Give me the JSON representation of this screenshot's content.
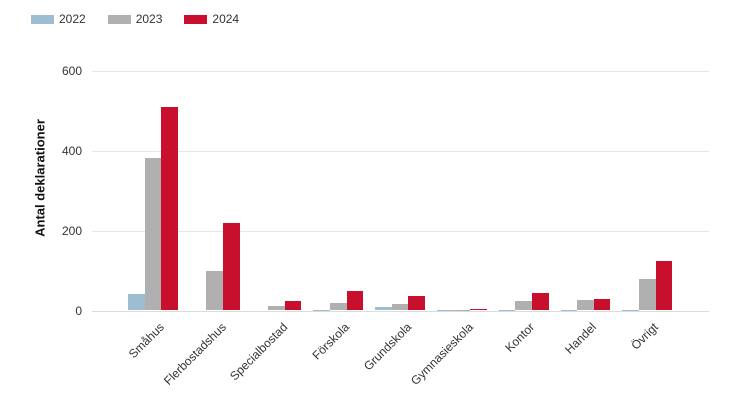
{
  "chart_data": {
    "type": "bar",
    "title": "",
    "xlabel": "",
    "ylabel": "Antal deklarationer",
    "ylim": [
      0,
      600
    ],
    "yticks": [
      0,
      200,
      400,
      600
    ],
    "grid": true,
    "legend_position": "top-left",
    "categories": [
      "Småhus",
      "Flerbostadshus",
      "Specialbostad",
      "Förskola",
      "Grundskola",
      "Gymnasieskola",
      "Kontor",
      "Handel",
      "Övrigt"
    ],
    "series": [
      {
        "name": "2022",
        "color": "#9dbdd2",
        "values": [
          42,
          0,
          0,
          1,
          8,
          1,
          1,
          1,
          1
        ]
      },
      {
        "name": "2023",
        "color": "#b0b0b0",
        "values": [
          382,
          98,
          11,
          20,
          16,
          1,
          24,
          27,
          80
        ]
      },
      {
        "name": "2024",
        "color": "#c8102e",
        "values": [
          510,
          218,
          24,
          50,
          37,
          4,
          45,
          30,
          123
        ]
      }
    ]
  }
}
